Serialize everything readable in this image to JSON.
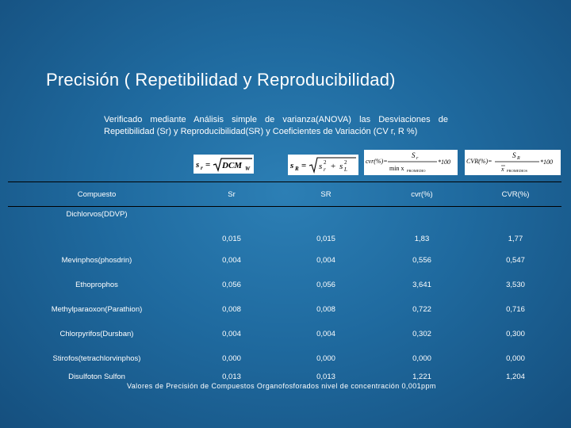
{
  "title": "Precisión ( Repetibilidad y Reproducibilidad)",
  "description": "Verificado mediante Análisis simple de varianza(ANOVA) las Desviaciones de Repetibilidad (Sr) y Reproducibilidad(SR) y Coeficientes de Variación (CV r, R %)",
  "formulas": [
    {
      "id": "sr",
      "text": "s_r = √DCM_W"
    },
    {
      "id": "SR",
      "text": "s_R = √(s_r² + s_L²)"
    },
    {
      "id": "cvr",
      "text": "cvr(%) = S_r / (min x_PROMEDIO) × 100"
    },
    {
      "id": "CVR",
      "text": "CVR(%) = S_R / x̄_PROMEDIOS × 100"
    }
  ],
  "table": {
    "headers": [
      "Compuesto",
      "Sr",
      "SR",
      "cvr(%)",
      "CVR(%)"
    ],
    "rows": [
      [
        "Dichlorvos(DDVP)",
        "0,015",
        "0,015",
        "1,83",
        "1,77"
      ],
      [
        "Mevinphos(phosdrin)",
        "0,004",
        "0,004",
        "0,556",
        "0,547"
      ],
      [
        "Ethoprophos",
        "0,056",
        "0,056",
        "3,641",
        "3,530"
      ],
      [
        "Methylparaoxon(Parathion)",
        "0,008",
        "0,008",
        "0,722",
        "0,716"
      ],
      [
        "Chlorpyrifos(Dursban)",
        "0,004",
        "0,004",
        "0,302",
        "0,300"
      ],
      [
        "Stirofos(tetrachlorvinphos)",
        "0,000",
        "0,000",
        "0,000",
        "0,000"
      ],
      [
        "Disulfoton Sulfon",
        "0,013",
        "0,013",
        "1,221",
        "1,204"
      ]
    ]
  },
  "footnote": "Valores de Precisión de Compuestos Organofosforados nivel de concentración 0,001ppm"
}
